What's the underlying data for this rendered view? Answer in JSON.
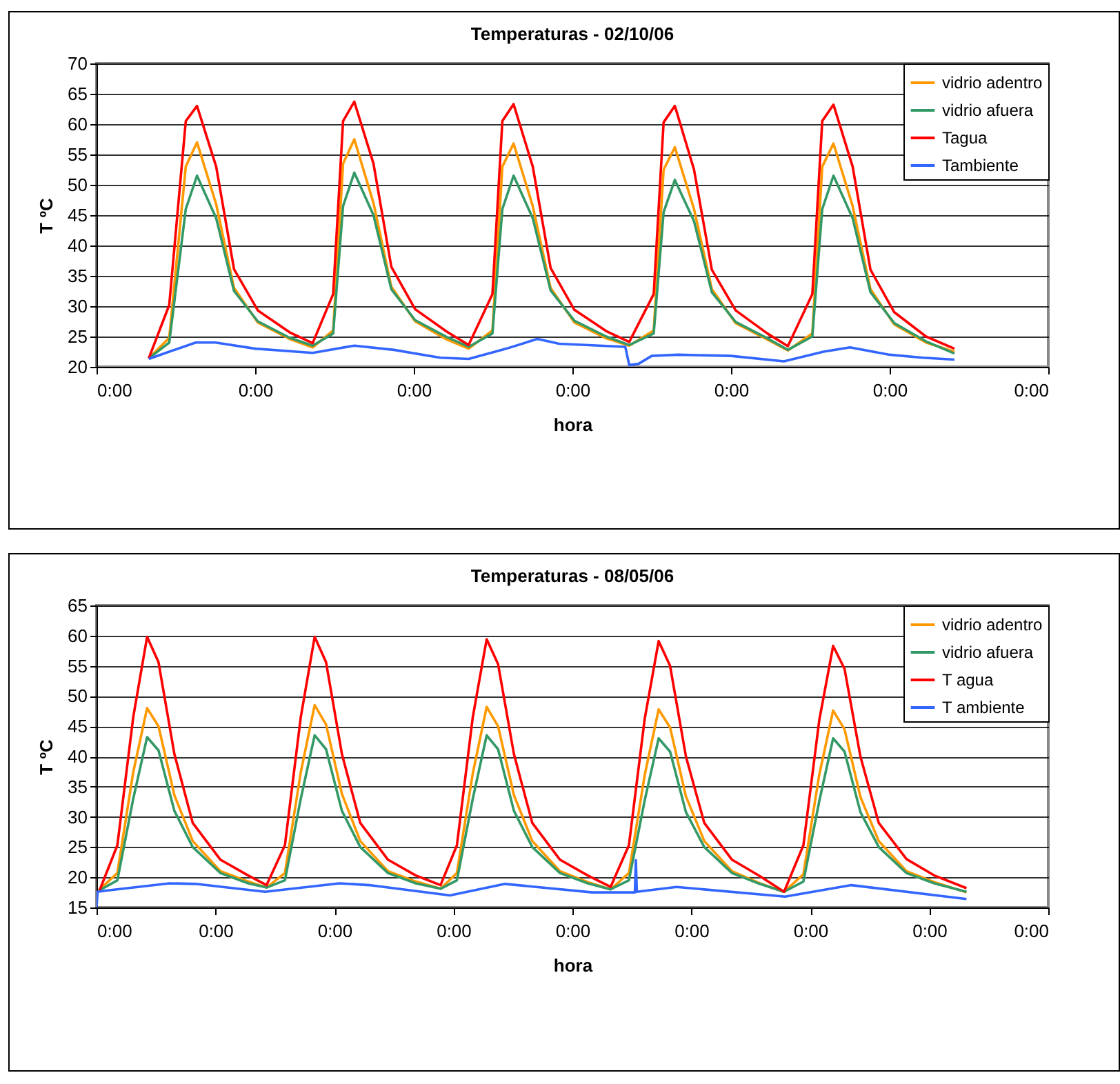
{
  "chart_data": [
    {
      "type": "line",
      "title": "Temperaturas - 02/10/06",
      "xlabel": "hora",
      "ylabel": "T ºC",
      "xlim": [
        "--10-02T00:00",
        "--10-08T00:00"
      ],
      "xticks": [
        {
          "value": "--10-02T00:00",
          "label": "0:00"
        },
        {
          "value": "--10-03T00:00",
          "label": "0:00"
        },
        {
          "value": "--10-04T00:00",
          "label": "0:00"
        },
        {
          "value": "--10-05T00:00",
          "label": "0:00"
        },
        {
          "value": "--10-06T00:00",
          "label": "0:00"
        },
        {
          "value": "--10-07T00:00",
          "label": "0:00"
        },
        {
          "value": "--10-08T00:00",
          "label": "0:00"
        }
      ],
      "ylim": [
        20,
        70
      ],
      "yticks": [
        20,
        25,
        30,
        35,
        40,
        45,
        50,
        55,
        60,
        65,
        70
      ],
      "grid": "y",
      "legend": "top right",
      "x": [
        "--10-02T07:54",
        "--10-02T11:00",
        "--10-02T13:30",
        "--10-02T15:12",
        "--10-02T18:06",
        "--10-02T20:48",
        "--10-03T00:24",
        "--10-03T05:12",
        "--10-03T08:42",
        "--10-03T11:48",
        "--10-03T13:18",
        "--10-03T15:00",
        "--10-03T17:54",
        "--10-03T20:36",
        "--10-04T00:12",
        "--10-04T05:00",
        "--10-04T08:18",
        "--10-04T11:54",
        "--10-04T13:24",
        "--10-04T15:06",
        "--10-04T18:00",
        "--10-04T20:42",
        "--10-05T00:18",
        "--10-05T05:06",
        "--10-05T08:36",
        "--10-05T12:18",
        "--10-05T13:48",
        "--10-05T15:30",
        "--10-05T18:24",
        "--10-05T21:06",
        "--10-06T00:42",
        "--10-06T05:30",
        "--10-06T08:36",
        "--10-06T12:18",
        "--10-06T13:48",
        "--10-06T15:30",
        "--10-06T18:24",
        "--10-06T21:06",
        "--10-07T00:42",
        "--10-07T05:30",
        "--10-07T09:48"
      ],
      "series": [
        {
          "name": "vidrio adentro",
          "color": "#ff9900",
          "values": [
            21.4,
            24.8,
            53,
            57,
            46.8,
            33,
            27.3,
            24.6,
            23.2,
            26,
            53.5,
            57.5,
            47,
            33.2,
            27.5,
            24.5,
            23,
            26,
            53,
            56.8,
            46.5,
            33,
            27.3,
            24.7,
            23.5,
            26,
            52.5,
            56.2,
            46,
            32.8,
            27.2,
            24.5,
            22.7,
            25.5,
            53,
            56.8,
            46.5,
            32.8,
            27,
            24,
            22.5
          ]
        },
        {
          "name": "vidrio afuera",
          "color": "#339966",
          "values": [
            21.4,
            24,
            46,
            51.5,
            44.5,
            32.5,
            27.5,
            24.8,
            23.5,
            25.5,
            46.5,
            52,
            45,
            32.8,
            27.7,
            24.9,
            23.3,
            25.5,
            46,
            51.5,
            44.5,
            32.6,
            27.6,
            25,
            23.6,
            25.5,
            45.5,
            50.8,
            44,
            32.3,
            27.4,
            24.7,
            22.8,
            25,
            46,
            51.5,
            44.5,
            32.3,
            27.2,
            24.2,
            22.2
          ]
        },
        {
          "name": "Tagua",
          "color": "#ff0000",
          "values": [
            21.4,
            30.2,
            60.5,
            63,
            53,
            36.1,
            29.3,
            25.7,
            23.9,
            32,
            60.5,
            63.7,
            53.5,
            36.5,
            29.5,
            25.8,
            23.6,
            32,
            60.5,
            63.3,
            53,
            36.3,
            29.4,
            25.9,
            24.1,
            32,
            60.3,
            63,
            52.5,
            36,
            29.3,
            25.5,
            23.4,
            32,
            60.5,
            63.2,
            53,
            36,
            29,
            25,
            23
          ]
        },
        {
          "name": "Tambiente",
          "color": "#3366ff",
          "x": [
            "--10-02T07:54",
            "--10-02T11:00",
            "--10-02T15:00",
            "--10-02T18:00",
            "--10-03T00:00",
            "--10-03T08:42",
            "--10-03T15:00",
            "--10-03T21:00",
            "--10-04T04:00",
            "--10-04T08:18",
            "--10-04T14:00",
            "--10-04T18:42",
            "--10-04T22:00",
            "--10-05T08:00",
            "--10-05T08:36",
            "--10-05T10:00",
            "--10-05T12:00",
            "--10-05T16:00",
            "--10-06T00:00",
            "--10-06T08:00",
            "--10-06T14:00",
            "--10-06T18:00",
            "--10-07T00:00",
            "--10-07T05:00",
            "--10-07T09:48"
          ],
          "values": [
            21.3,
            22.5,
            24,
            24,
            23,
            22.3,
            23.5,
            22.8,
            21.5,
            21.3,
            23,
            24.6,
            23.8,
            23.3,
            20.3,
            20.5,
            21.8,
            22,
            21.8,
            20.9,
            22.5,
            23.2,
            22,
            21.5,
            21.2
          ]
        }
      ]
    },
    {
      "type": "line",
      "title": "Temperaturas - 08/05/06",
      "xlabel": "hora",
      "ylabel": "T ºC",
      "xlim": [
        "--05-08T00:00",
        "--05-16T00:00"
      ],
      "xticks": [
        {
          "value": "--05-08T00:00",
          "label": "0:00"
        },
        {
          "value": "--05-09T00:00",
          "label": "0:00"
        },
        {
          "value": "--05-10T00:00",
          "label": "0:00"
        },
        {
          "value": "--05-11T00:00",
          "label": "0:00"
        },
        {
          "value": "--05-12T00:00",
          "label": "0:00"
        },
        {
          "value": "--05-13T00:00",
          "label": "0:00"
        },
        {
          "value": "--05-14T00:00",
          "label": "0:00"
        },
        {
          "value": "--05-15T00:00",
          "label": "0:00"
        },
        {
          "value": "--05-16T00:00",
          "label": "0:00"
        }
      ],
      "ylim": [
        15,
        65
      ],
      "yticks": [
        15,
        20,
        25,
        30,
        35,
        40,
        45,
        50,
        55,
        60,
        65
      ],
      "grid": "y",
      "legend": "top right",
      "x": [
        "--05-08T00:30",
        "--05-08T04:12",
        "--05-08T07:24",
        "--05-08T10:12",
        "--05-08T12:30",
        "--05-08T15:42",
        "--05-08T19:24",
        "--05-09T01:00",
        "--05-09T06:36",
        "--05-09T10:18",
        "--05-09T14:00",
        "--05-09T17:12",
        "--05-09T20:00",
        "--05-09T22:18",
        "--05-10T01:30",
        "--05-10T05:12",
        "--05-10T10:48",
        "--05-10T16:24",
        "--05-10T21:24",
        "--05-11T00:42",
        "--05-11T03:54",
        "--05-11T06:42",
        "--05-11T09:00",
        "--05-11T12:12",
        "--05-11T15:54",
        "--05-11T21:30",
        "--05-12T03:06",
        "--05-12T07:42",
        "--05-12T11:24",
        "--05-12T14:36",
        "--05-12T17:24",
        "--05-12T19:42",
        "--05-12T22:54",
        "--05-13T02:36",
        "--05-13T08:12",
        "--05-13T13:48",
        "--05-13T18:42",
        "--05-13T22:36",
        "--05-14T01:48",
        "--05-14T04:36",
        "--05-14T06:54",
        "--05-14T10:06",
        "--05-14T13:48",
        "--05-14T19:24",
        "--05-15T01:00",
        "--05-15T07:30"
      ],
      "series": [
        {
          "name": "vidrio adentro",
          "color": "#ff9900",
          "values": [
            17.9,
            20.7,
            37.4,
            48,
            45,
            33.6,
            26,
            21,
            19.3,
            18.3,
            20.7,
            37.4,
            48.5,
            45.3,
            33.8,
            26,
            21,
            19.3,
            18.1,
            20.7,
            37.2,
            48.2,
            45,
            33.6,
            26,
            21,
            19.2,
            18,
            20.7,
            37,
            47.8,
            44.8,
            33.4,
            26,
            21,
            19,
            17.6,
            20.5,
            37,
            47.6,
            44.5,
            33.3,
            26,
            21,
            19.2,
            17.5
          ]
        },
        {
          "name": "vidrio afuera",
          "color": "#339966",
          "values": [
            17.8,
            19.5,
            33,
            43.2,
            41,
            31,
            25,
            20.7,
            19,
            18.3,
            19.5,
            33,
            43.5,
            41.2,
            31,
            25,
            20.7,
            19,
            18.1,
            19.5,
            33,
            43.5,
            41.2,
            31,
            25,
            20.7,
            19,
            18,
            19.5,
            32.8,
            43,
            40.8,
            30.8,
            25,
            20.7,
            18.9,
            17.6,
            19.3,
            32.6,
            43,
            40.8,
            30.8,
            25,
            20.7,
            19,
            17.6
          ]
        },
        {
          "name": "T agua",
          "color": "#ff0000",
          "values": [
            17.6,
            25.3,
            46.5,
            59.8,
            55.6,
            40.4,
            29,
            22.9,
            20.3,
            18.7,
            25.3,
            46.5,
            59.8,
            55.6,
            40.4,
            29,
            22.9,
            20.3,
            18.7,
            25.3,
            46.5,
            59.4,
            55.3,
            40.4,
            29,
            22.9,
            20.3,
            18.4,
            25.3,
            46.3,
            59.1,
            55,
            40,
            29,
            22.9,
            20.2,
            17.6,
            25.3,
            46,
            58.3,
            54.5,
            40,
            29,
            23,
            20.3,
            18.2
          ]
        },
        {
          "name": "T ambiente",
          "color": "#3366ff",
          "x": [
            "--05-08T00:00",
            "--05-08T00:12",
            "--05-08T02:00",
            "--05-08T14:42",
            "--05-08T20:00",
            "--05-09T10:00",
            "--05-10T01:00",
            "--05-10T07:00",
            "--05-10T23:18",
            "--05-11T10:24",
            "--05-12T04:00",
            "--05-12T12:36",
            "--05-12T12:48",
            "--05-12T13:00",
            "--05-12T21:00",
            "--05-13T18:54",
            "--05-14T08:18",
            "--05-15T07:30"
          ],
          "values": [
            15,
            17.6,
            17.8,
            19,
            18.9,
            17.6,
            19,
            18.7,
            17,
            18.9,
            17.5,
            17.5,
            22.8,
            17.6,
            18.4,
            16.8,
            18.7,
            16.4
          ]
        }
      ]
    }
  ]
}
